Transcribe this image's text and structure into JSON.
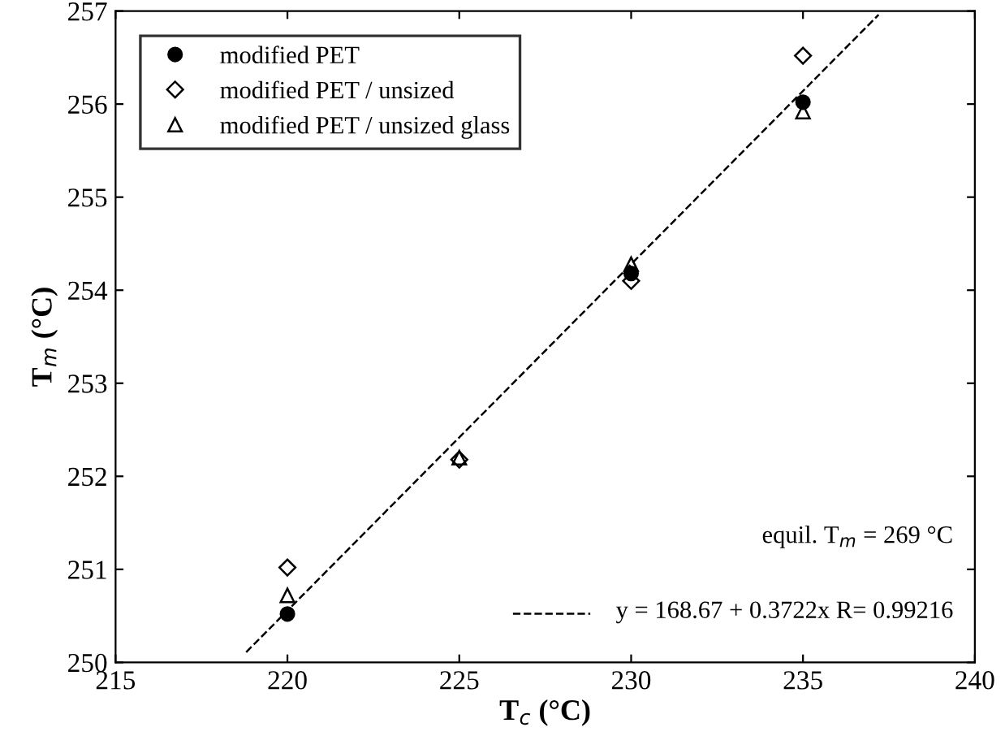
{
  "chart_data": {
    "type": "scatter",
    "xlabel": "T$_{c}$ (°C)",
    "ylabel": "T$_{m}$ (°C)",
    "xlim": [
      215,
      240
    ],
    "xticks": [
      215,
      220,
      225,
      230,
      235,
      240
    ],
    "ylim": [
      250,
      257
    ],
    "yticks": [
      250,
      251,
      252,
      253,
      254,
      255,
      256,
      257
    ],
    "grid": false,
    "legend": "top left",
    "x": [
      220,
      225,
      230,
      235
    ],
    "series": [
      {
        "name": "modified PET",
        "marker": "circle",
        "color": "#000000",
        "values": [
          250.52,
          null,
          254.18,
          256.02
        ]
      },
      {
        "name": "modified PET / unsized",
        "marker": "diamond",
        "color": "#000000",
        "values": [
          251.02,
          252.18,
          254.1,
          256.52
        ]
      },
      {
        "name": "modified PET / unsized glass",
        "marker": "triangle",
        "color": "#000000",
        "values": [
          250.72,
          252.2,
          254.28,
          255.92
        ]
      },
      {
        "type": "line",
        "line_style": "dashed",
        "color": "#000000",
        "x": [
          218.8,
          237.2
        ],
        "values": [
          250.11,
          256.96
        ]
      }
    ],
    "annotations": [
      "equil. T$_{m}$ = 269 °C",
      "y = 168.67 + 0.3722x R= 0.99216"
    ]
  }
}
